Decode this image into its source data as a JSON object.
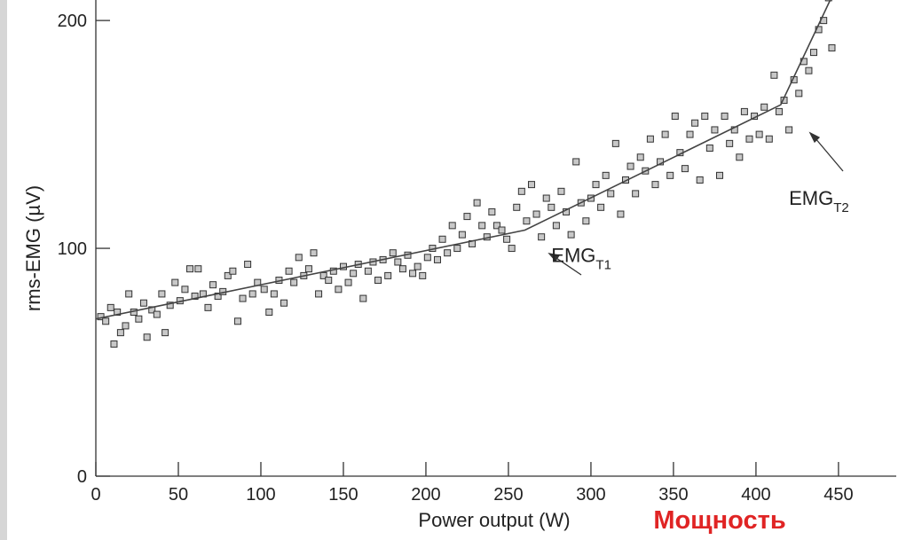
{
  "chart_data": {
    "type": "scatter",
    "xlabel": "Power output (W)",
    "ylabel": "rms-EMG (µV)",
    "xlabel_translation": "Мощность",
    "xlim": [
      0,
      485
    ],
    "ylim": [
      0,
      209
    ],
    "xticks": [
      0,
      50,
      100,
      150,
      200,
      250,
      300,
      350,
      400,
      450
    ],
    "yticks": [
      0,
      100,
      200
    ],
    "marker_color": "#c8c8c8",
    "marker_edge": "#333333",
    "line_color": "#444444",
    "points": {
      "x": [
        3,
        6,
        9,
        11,
        13,
        15,
        18,
        20,
        23,
        26,
        29,
        31,
        34,
        37,
        40,
        42,
        45,
        48,
        51,
        54,
        57,
        60,
        62,
        65,
        68,
        71,
        74,
        77,
        80,
        83,
        86,
        89,
        92,
        95,
        98,
        102,
        105,
        108,
        111,
        114,
        117,
        120,
        123,
        126,
        129,
        132,
        135,
        138,
        141,
        144,
        147,
        150,
        153,
        156,
        159,
        162,
        165,
        168,
        171,
        174,
        177,
        180,
        183,
        186,
        189,
        192,
        195,
        198,
        201,
        204,
        207,
        210,
        213,
        216,
        219,
        222,
        225,
        228,
        231,
        234,
        237,
        240,
        243,
        246,
        249,
        252,
        255,
        258,
        261,
        264,
        267,
        270,
        273,
        276,
        279,
        282,
        285,
        288,
        291,
        294,
        297,
        300,
        303,
        306,
        309,
        312,
        315,
        318,
        321,
        324,
        327,
        330,
        333,
        336,
        339,
        342,
        345,
        348,
        351,
        354,
        357,
        360,
        363,
        366,
        369,
        372,
        375,
        378,
        381,
        384,
        387,
        390,
        393,
        396,
        399,
        402,
        405,
        408,
        411,
        414,
        417,
        420,
        423,
        426,
        429,
        432,
        435,
        438,
        441,
        444,
        446
      ],
      "y": [
        70,
        68,
        74,
        58,
        72,
        63,
        66,
        80,
        72,
        69,
        76,
        61,
        73,
        71,
        80,
        63,
        75,
        85,
        77,
        82,
        91,
        79,
        91,
        80,
        74,
        84,
        79,
        81,
        88,
        90,
        68,
        78,
        93,
        80,
        85,
        82,
        72,
        80,
        86,
        76,
        90,
        85,
        96,
        88,
        91,
        98,
        80,
        88,
        86,
        90,
        82,
        92,
        85,
        89,
        93,
        78,
        90,
        94,
        86,
        95,
        88,
        98,
        94,
        91,
        97,
        89,
        92,
        88,
        96,
        100,
        95,
        104,
        98,
        110,
        100,
        106,
        114,
        102,
        120,
        110,
        105,
        116,
        110,
        108,
        104,
        100,
        118,
        125,
        112,
        128,
        115,
        105,
        122,
        118,
        110,
        125,
        116,
        106,
        138,
        120,
        112,
        122,
        128,
        118,
        132,
        124,
        146,
        115,
        130,
        136,
        124,
        140,
        134,
        148,
        128,
        138,
        150,
        132,
        158,
        142,
        135,
        150,
        155,
        130,
        158,
        144,
        152,
        132,
        158,
        146,
        152,
        140,
        160,
        148,
        158,
        150,
        162,
        148,
        176,
        160,
        165,
        152,
        174,
        168,
        182,
        178,
        186,
        196,
        200,
        210,
        188
      ]
    },
    "fit_line": {
      "x": [
        0,
        260,
        415,
        445
      ],
      "y": [
        69,
        108,
        163,
        209
      ]
    },
    "annotations": [
      {
        "text": "EMG",
        "sub": "T1",
        "x": 276,
        "y": 94
      },
      {
        "text": "EMG",
        "sub": "T2",
        "x": 420,
        "y": 119
      }
    ]
  }
}
